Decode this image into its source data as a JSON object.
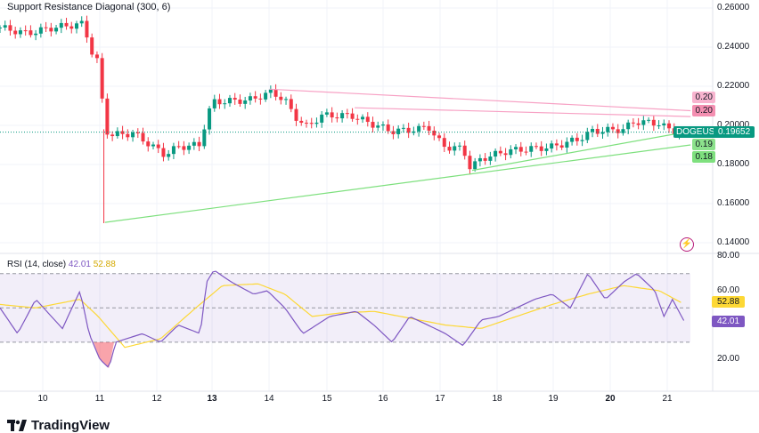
{
  "indicator_title": "Support Resistance Diagonal (300, 6)",
  "rsi_title": "RSI (14, close)",
  "rsi_value": "42.01",
  "rsi_ma_value": "52.88",
  "symbol": "DOGEUSD",
  "last_price": "0.19652",
  "price_axis": [
    "0.26000",
    "0.24000",
    "0.22000",
    "0.20000",
    "0.18000",
    "0.16000",
    "0.14000"
  ],
  "rsi_axis": [
    "80.00",
    "60.00",
    "20.00"
  ],
  "sr_labels": {
    "r1": "0.20",
    "r2": "0.20",
    "s1": "0.19",
    "s2": "0.18"
  },
  "time_axis": [
    "10",
    "11",
    "12",
    "13",
    "14",
    "15",
    "16",
    "17",
    "18",
    "19",
    "20",
    "21"
  ],
  "brand": "TradingView",
  "colors": {
    "up": "#089981",
    "down": "#f23645",
    "rsi": "#7e57c2",
    "rsi_ma": "#fdd835",
    "resistance": "#f7a1c4",
    "support": "#7ee07e"
  },
  "chart_data": {
    "type": "candlestick",
    "price_keypoints": [
      [
        9.25,
        0.25
      ],
      [
        9.72,
        0.247
      ],
      [
        10.19,
        0.25
      ],
      [
        10.74,
        0.252
      ],
      [
        10.82,
        0.24
      ],
      [
        10.98,
        0.232
      ],
      [
        11.06,
        0.21
      ],
      [
        11.1,
        0.198
      ],
      [
        11.21,
        0.195
      ],
      [
        11.6,
        0.196
      ],
      [
        12.0,
        0.188
      ],
      [
        12.15,
        0.185
      ],
      [
        12.39,
        0.189
      ],
      [
        12.78,
        0.19
      ],
      [
        12.89,
        0.205
      ],
      [
        13.02,
        0.212
      ],
      [
        13.65,
        0.213
      ],
      [
        14.04,
        0.217
      ],
      [
        14.27,
        0.213
      ],
      [
        14.43,
        0.205
      ],
      [
        14.67,
        0.199
      ],
      [
        14.9,
        0.205
      ],
      [
        15.45,
        0.205
      ],
      [
        15.69,
        0.202
      ],
      [
        16.16,
        0.197
      ],
      [
        16.63,
        0.198
      ],
      [
        16.79,
        0.2
      ],
      [
        16.94,
        0.193
      ],
      [
        17.1,
        0.189
      ],
      [
        17.41,
        0.188
      ],
      [
        17.54,
        0.178
      ],
      [
        17.73,
        0.183
      ],
      [
        18.2,
        0.187
      ],
      [
        18.98,
        0.189
      ],
      [
        19.45,
        0.193
      ],
      [
        19.69,
        0.197
      ],
      [
        20.24,
        0.198
      ],
      [
        20.43,
        0.202
      ],
      [
        20.87,
        0.201
      ],
      [
        21.02,
        0.198
      ],
      [
        21.26,
        0.1965
      ]
    ],
    "resistance_lines": [
      [
        [
          14.0,
          0.2185
        ],
        [
          21.42,
          0.2075
        ]
      ],
      [
        [
          15.5,
          0.209
        ],
        [
          21.42,
          0.2045
        ]
      ]
    ],
    "support_lines": [
      [
        [
          11.1,
          0.1504
        ],
        [
          21.42,
          0.19
        ]
      ],
      [
        [
          17.57,
          0.177
        ],
        [
          21.42,
          0.197
        ]
      ]
    ],
    "rsi_keypoints": [
      [
        9.25,
        50
      ],
      [
        9.56,
        35
      ],
      [
        9.88,
        55
      ],
      [
        10.35,
        38
      ],
      [
        10.66,
        60
      ],
      [
        10.82,
        35
      ],
      [
        11.01,
        20
      ],
      [
        11.17,
        15
      ],
      [
        11.29,
        30
      ],
      [
        11.76,
        35
      ],
      [
        12.08,
        30
      ],
      [
        12.39,
        40
      ],
      [
        12.78,
        35
      ],
      [
        12.89,
        65
      ],
      [
        13.02,
        72
      ],
      [
        13.33,
        65
      ],
      [
        13.72,
        58
      ],
      [
        13.96,
        60
      ],
      [
        14.27,
        50
      ],
      [
        14.59,
        35
      ],
      [
        15.06,
        45
      ],
      [
        15.53,
        48
      ],
      [
        15.84,
        40
      ],
      [
        16.16,
        30
      ],
      [
        16.47,
        45
      ],
      [
        16.79,
        40
      ],
      [
        17.1,
        35
      ],
      [
        17.41,
        28
      ],
      [
        17.73,
        43
      ],
      [
        18.04,
        45
      ],
      [
        18.35,
        50
      ],
      [
        18.67,
        55
      ],
      [
        18.98,
        58
      ],
      [
        19.3,
        50
      ],
      [
        19.61,
        70
      ],
      [
        19.92,
        55
      ],
      [
        20.24,
        65
      ],
      [
        20.47,
        70
      ],
      [
        20.79,
        60
      ],
      [
        20.95,
        45
      ],
      [
        21.1,
        55
      ],
      [
        21.31,
        42
      ]
    ],
    "rsi_ma_keypoints": [
      [
        9.25,
        52
      ],
      [
        9.88,
        50
      ],
      [
        10.66,
        55
      ],
      [
        10.98,
        45
      ],
      [
        11.45,
        27
      ],
      [
        12.08,
        32
      ],
      [
        12.7,
        50
      ],
      [
        13.17,
        63
      ],
      [
        13.8,
        64
      ],
      [
        14.27,
        58
      ],
      [
        14.75,
        45
      ],
      [
        15.22,
        47
      ],
      [
        15.84,
        48
      ],
      [
        16.47,
        44
      ],
      [
        17.1,
        40
      ],
      [
        17.73,
        38
      ],
      [
        18.35,
        45
      ],
      [
        18.98,
        52
      ],
      [
        19.61,
        58
      ],
      [
        20.24,
        63
      ],
      [
        20.87,
        60
      ],
      [
        21.26,
        53
      ]
    ],
    "price_range": [
      0.14,
      0.26
    ],
    "rsi_range": [
      20,
      80
    ],
    "rsi_bands": [
      70,
      30
    ]
  }
}
